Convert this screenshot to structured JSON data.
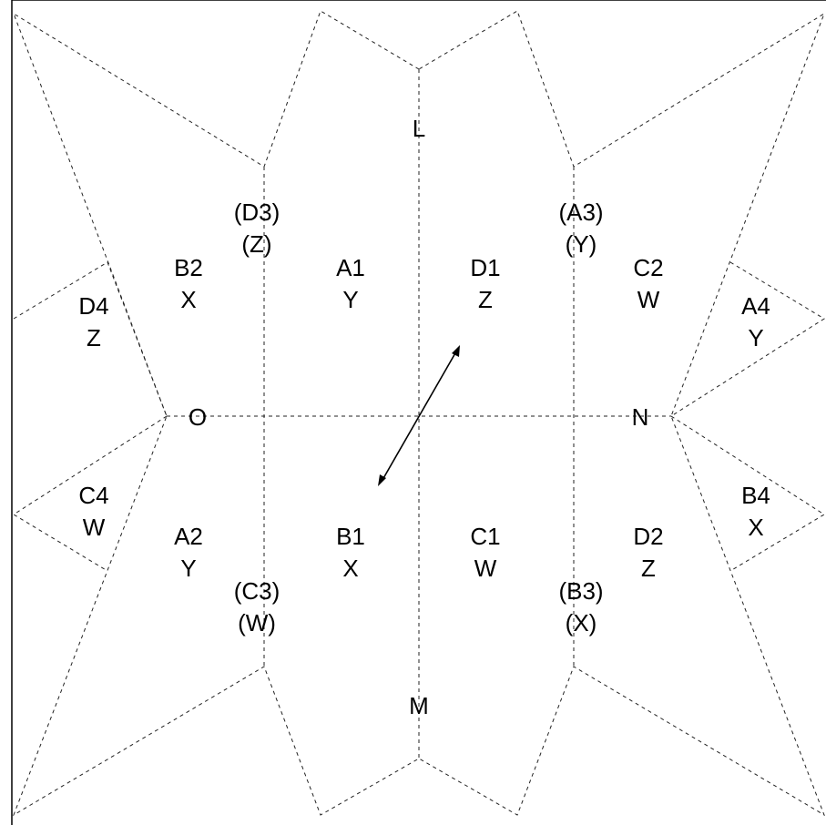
{
  "diagram": {
    "colors": {
      "line": "#222222",
      "text": "#000000",
      "background": "#ffffff"
    },
    "axis_points": {
      "top": "L",
      "bottom": "M",
      "right": "N",
      "left": "O"
    },
    "regions": {
      "a1": {
        "top": "A1",
        "bottom": "Y"
      },
      "d1": {
        "top": "D1",
        "bottom": "Z"
      },
      "b1": {
        "top": "B1",
        "bottom": "X"
      },
      "c1": {
        "top": "C1",
        "bottom": "W"
      },
      "b2": {
        "top": "B2",
        "bottom": "X"
      },
      "c2": {
        "top": "C2",
        "bottom": "W"
      },
      "a2": {
        "top": "A2",
        "bottom": "Y"
      },
      "d2": {
        "top": "D2",
        "bottom": "Z"
      },
      "d3": {
        "top": "(D3)",
        "bottom": "(Z)"
      },
      "a3": {
        "top": "(A3)",
        "bottom": "(Y)"
      },
      "c3": {
        "top": "(C3)",
        "bottom": "(W)"
      },
      "b3": {
        "top": "(B3)",
        "bottom": "(X)"
      },
      "d4": {
        "top": "D4",
        "bottom": "Z"
      },
      "a4": {
        "top": "A4",
        "bottom": "Y"
      },
      "c4": {
        "top": "C4",
        "bottom": "W"
      },
      "b4": {
        "top": "B4",
        "bottom": "X"
      }
    },
    "arrow": "double-headed-arrow"
  }
}
